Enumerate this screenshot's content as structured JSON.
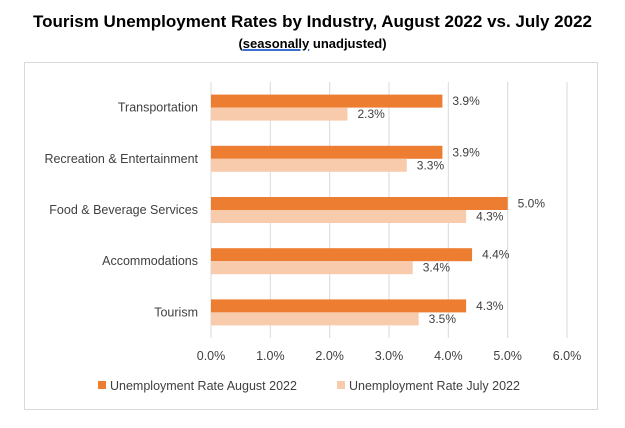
{
  "title": "Tourism Unemployment Rates by Industry, August 2022 vs. July 2022",
  "subtitle_prefix": "(",
  "subtitle_word": "seasonally",
  "subtitle_suffix": " unadjusted)",
  "colors": {
    "august": "#ed7d31",
    "july": "#f8cbad",
    "grid": "#d9d9d9"
  },
  "chart_data": {
    "type": "bar",
    "orientation": "horizontal",
    "categories": [
      "Transportation",
      "Recreation & Entertainment",
      "Food & Beverage Services",
      "Accommodations",
      "Tourism"
    ],
    "series": [
      {
        "name": "Unemployment Rate August 2022",
        "values": [
          3.9,
          3.9,
          5.0,
          4.4,
          4.3
        ],
        "labels": [
          "3.9%",
          "3.9%",
          "5.0%",
          "4.4%",
          "4.3%"
        ]
      },
      {
        "name": "Unemployment Rate July 2022",
        "values": [
          2.3,
          3.3,
          4.3,
          3.4,
          3.5
        ],
        "labels": [
          "2.3%",
          "3.3%",
          "4.3%",
          "3.4%",
          "3.5%"
        ]
      }
    ],
    "xlim": [
      0,
      6
    ],
    "ticks": [
      0,
      1,
      2,
      3,
      4,
      5,
      6
    ],
    "tick_labels": [
      "0.0%",
      "1.0%",
      "2.0%",
      "3.0%",
      "4.0%",
      "5.0%",
      "6.0%"
    ],
    "grid": true,
    "legend_position": "bottom"
  }
}
